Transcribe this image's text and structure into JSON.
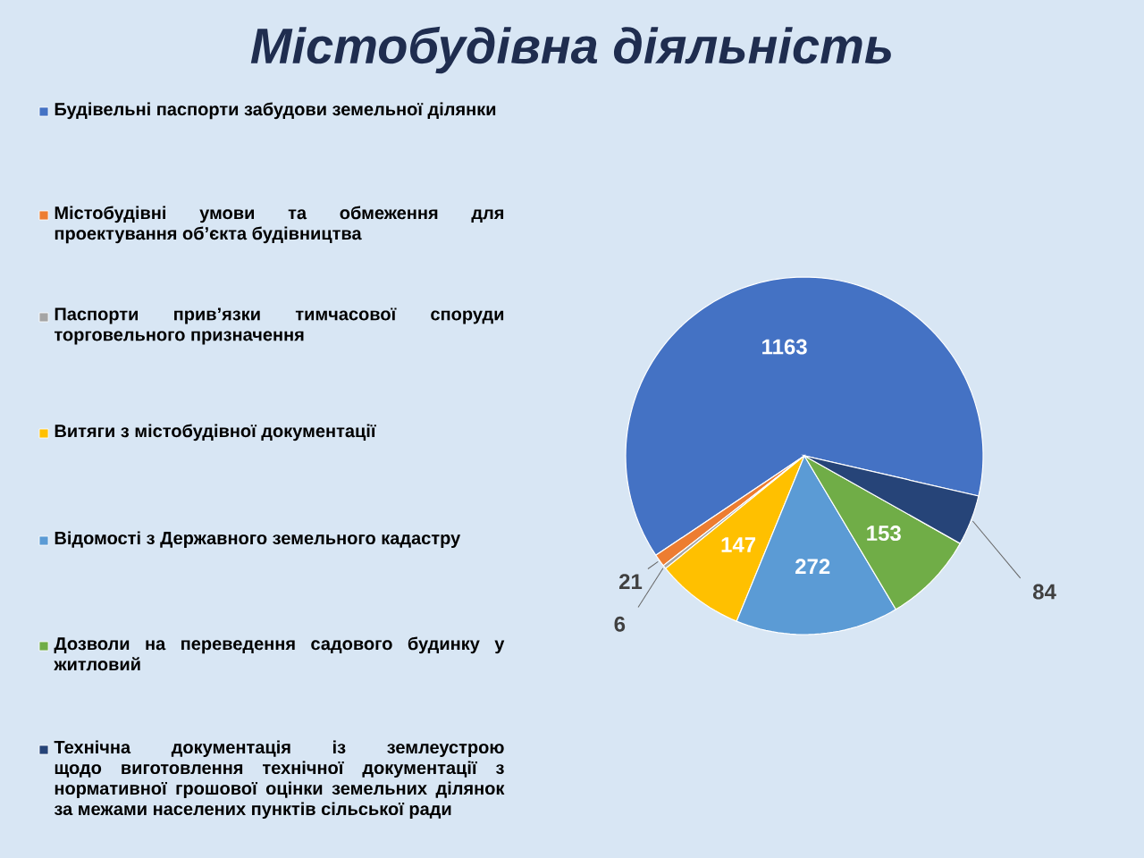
{
  "chart_data": {
    "type": "pie",
    "title": "Містобудівна діяльність",
    "categories": [
      "Будівельні паспорти забудови земельної ділянки",
      "Містобудівні умови та обмеження для проектування об’єкта будівництва",
      "Паспорти прив’язки тимчасової споруди торговельного призначення",
      "Витяги з містобудівної документації",
      "Відомості з Державного земельного кадастру",
      "Дозволи на переведення садового будинку у житловий",
      "Технічна документація із землеустрою щодо виготовлення технічної документації з нормативної грошової оцінки земельних ділянок за межами населених пунктів сільської ради"
    ],
    "values": [
      1163,
      21,
      6,
      147,
      272,
      153,
      84
    ],
    "colors": [
      "#4472c4",
      "#ed7d31",
      "#a5a5a5",
      "#ffc000",
      "#5b9bd5",
      "#70ad47",
      "#264478"
    ],
    "data_labels": true,
    "legend": "left"
  }
}
